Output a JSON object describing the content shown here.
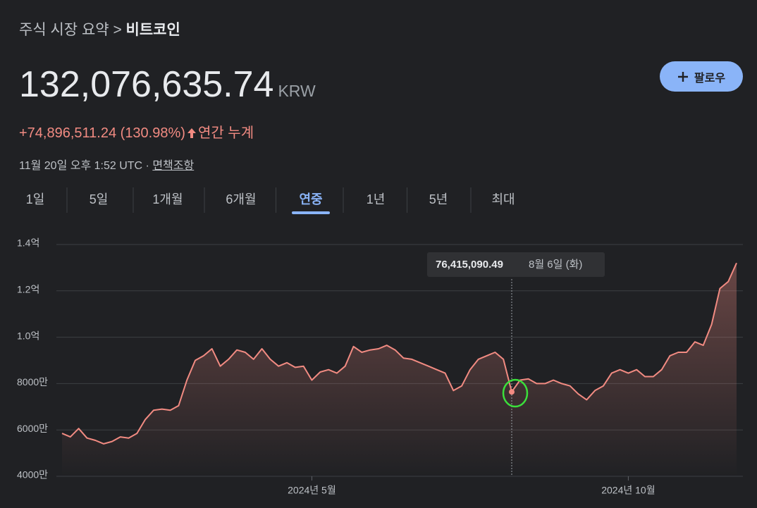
{
  "breadcrumb": {
    "parent": "주식 시장 요약",
    "separator": ">",
    "current": "비트코인"
  },
  "price": {
    "value": "132,076,635.74",
    "currency": "KRW"
  },
  "change": {
    "text": "+74,896,511.24 (130.98%)",
    "period": "연간 누계"
  },
  "timestamp": "11월 20일 오후 1:52 UTC",
  "dot": "·",
  "disclaimer": "면책조항",
  "follow_button": "팔로우",
  "tabs": [
    "1일",
    "5일",
    "1개월",
    "6개월",
    "연중",
    "1년",
    "5년",
    "최대"
  ],
  "selected_tab": 4,
  "chart_data": {
    "type": "line",
    "color": "#f28b82",
    "categories": [
      null,
      null,
      null,
      null,
      null,
      null,
      null,
      null,
      null,
      null,
      null,
      null,
      null,
      null,
      null,
      null,
      null,
      null,
      null,
      null,
      null,
      null,
      null,
      null,
      null,
      null,
      null,
      null,
      null,
      null,
      "2024년 5월",
      null,
      null,
      null,
      null,
      null,
      null,
      null,
      null,
      null,
      null,
      null,
      null,
      null,
      null,
      null,
      null,
      null,
      null,
      null,
      null,
      null,
      null,
      null,
      null,
      null,
      null,
      null,
      null,
      null,
      null,
      null,
      null,
      null,
      null,
      null,
      null,
      null,
      "2024년 10월",
      null,
      null,
      null,
      null,
      null,
      null,
      null,
      null,
      null,
      null,
      null,
      null,
      null
    ],
    "values": [
      58500000,
      57000000,
      60600000,
      56500000,
      55500000,
      54000000,
      55000000,
      57000000,
      56500000,
      58500000,
      64500000,
      68500000,
      69000000,
      68500000,
      70500000,
      81500000,
      90000000,
      92000000,
      95000000,
      87500000,
      90500000,
      94500000,
      93500000,
      90500000,
      95000000,
      90500000,
      87500000,
      89000000,
      87000000,
      87500000,
      81500000,
      85000000,
      86000000,
      84500000,
      87500000,
      96000000,
      93500000,
      94500000,
      95000000,
      96500000,
      94500000,
      91000000,
      90500000,
      89000000,
      87500000,
      86000000,
      84500000,
      77000000,
      79000000,
      86000000,
      90500000,
      92000000,
      93500000,
      90500000,
      76415090.49,
      81500000,
      82000000,
      80000000,
      80000000,
      81500000,
      80000000,
      79000000,
      75500000,
      73000000,
      77000000,
      79000000,
      84500000,
      86000000,
      84500000,
      86000000,
      83000000,
      83000000,
      86000000,
      92000000,
      93500000,
      93500000,
      98000000,
      96500000,
      105500000,
      121000000,
      124000000,
      132000000
    ],
    "ylim": [
      40000000,
      140000000
    ],
    "yticks": [
      {
        "value": 40000000,
        "label": "4000만"
      },
      {
        "value": 60000000,
        "label": "6000만"
      },
      {
        "value": 80000000,
        "label": "8000만"
      },
      {
        "value": 100000000,
        "label": "1.0억"
      },
      {
        "value": 120000000,
        "label": "1.2억"
      },
      {
        "value": 140000000,
        "label": "1.4억"
      }
    ],
    "grid": true,
    "tooltip": {
      "index": 54,
      "label": "76,415,090.49",
      "date": "8월 6일 (화)"
    }
  }
}
